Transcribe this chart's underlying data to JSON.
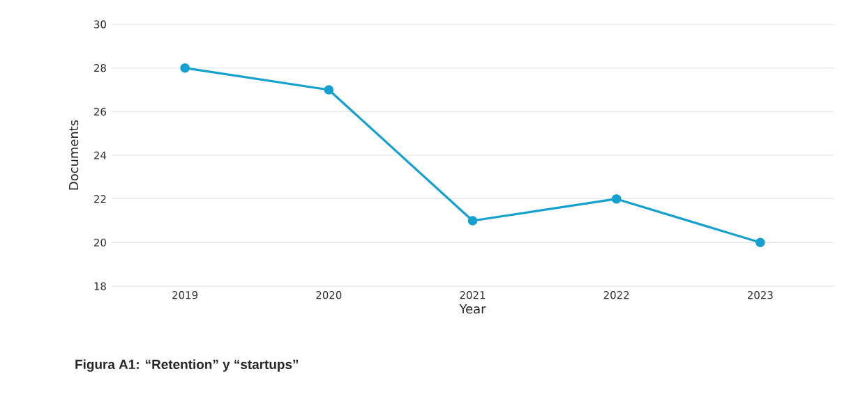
{
  "chart_data": {
    "type": "line",
    "title": "Figura A1: “Retention” y “startups”",
    "xlabel": "Year",
    "ylabel": "Documents",
    "categories": [
      "2019",
      "2020",
      "2021",
      "2022",
      "2023"
    ],
    "series": [
      {
        "color": "#14a0d0",
        "values": [
          28,
          27,
          21,
          22,
          20
        ]
      }
    ],
    "ylim": [
      18,
      30
    ],
    "yticks": [
      18,
      20,
      22,
      24,
      26,
      28,
      30
    ],
    "grid": "y",
    "marker": "circle"
  }
}
